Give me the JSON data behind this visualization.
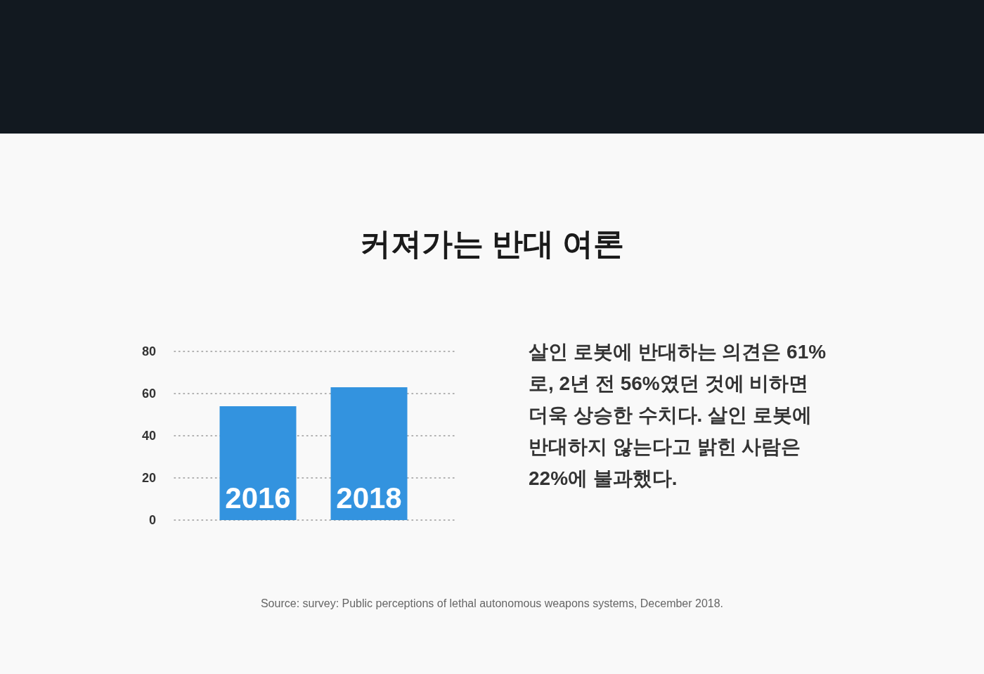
{
  "chart_data": {
    "type": "bar",
    "title": "커져가는 반대 여론",
    "categories": [
      "2016",
      "2018"
    ],
    "values": [
      54,
      63
    ],
    "color": "#3393df",
    "ylim": [
      0,
      80
    ],
    "yticks": [
      0,
      20,
      40,
      60,
      80
    ],
    "grid": "y",
    "annotations": [
      "살인 로봇에 반대하는 의견은 61%로, 2년 전 56%였던 것에 비하면 더욱 상승한 수치다. 살인 로봇에 반대하지 않는다고 밝힌 사람은 22%에 불과했다.",
      "Source: survey: Public perceptions of lethal autonomous weapons systems, December 2018."
    ]
  }
}
